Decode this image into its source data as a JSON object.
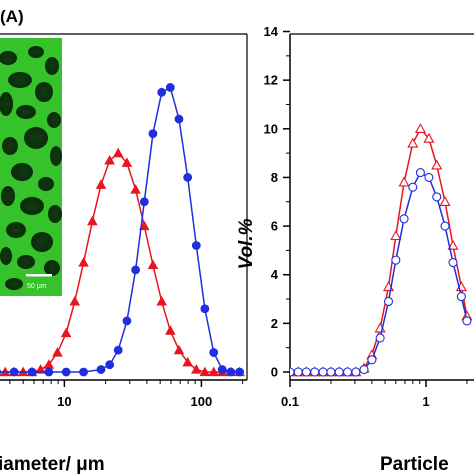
{
  "figure": {
    "panel_label": "(A)",
    "micrograph": {
      "scale_bar_label": "50 μm"
    }
  },
  "chart_data": [
    {
      "type": "line",
      "xscale": "log",
      "xlim": [
        4,
        200
      ],
      "ylim": [
        0,
        14
      ],
      "xticks": [
        10,
        100
      ],
      "xtick_labels": [
        "10",
        "100"
      ],
      "xlabel_visible": "iameter/ μm",
      "series": [
        {
          "color": "#e8141e",
          "marker": "filled-triangle",
          "points": [
            [
              3.2,
              0
            ],
            [
              3.7,
              0
            ],
            [
              4.3,
              0
            ],
            [
              5.0,
              0
            ],
            [
              5.8,
              0
            ],
            [
              6.7,
              0.1
            ],
            [
              7.7,
              0.3
            ],
            [
              8.9,
              0.8
            ],
            [
              10.3,
              1.6
            ],
            [
              11.9,
              2.9
            ],
            [
              13.8,
              4.5
            ],
            [
              16.0,
              6.2
            ],
            [
              18.5,
              7.7
            ],
            [
              21.4,
              8.7
            ],
            [
              24.7,
              9.0
            ],
            [
              28.6,
              8.6
            ],
            [
              33.1,
              7.5
            ],
            [
              38.3,
              6.0
            ],
            [
              44.3,
              4.4
            ],
            [
              51.3,
              2.9
            ],
            [
              59.3,
              1.7
            ],
            [
              68.6,
              0.9
            ],
            [
              79.4,
              0.4
            ],
            [
              91.8,
              0.1
            ],
            [
              106,
              0
            ],
            [
              123,
              0
            ],
            [
              142,
              0
            ],
            [
              164,
              0
            ],
            [
              190,
              0
            ]
          ]
        },
        {
          "color": "#1f2fe0",
          "marker": "filled-circle",
          "points": [
            [
              3.2,
              0
            ],
            [
              4.3,
              0
            ],
            [
              5.8,
              0
            ],
            [
              7.7,
              0
            ],
            [
              10.3,
              0
            ],
            [
              13.8,
              0
            ],
            [
              18.5,
              0.1
            ],
            [
              21.4,
              0.3
            ],
            [
              24.7,
              0.9
            ],
            [
              28.6,
              2.1
            ],
            [
              33.1,
              4.2
            ],
            [
              38.3,
              7.0
            ],
            [
              44.3,
              9.8
            ],
            [
              51.3,
              11.5
            ],
            [
              59.3,
              11.7
            ],
            [
              68.6,
              10.4
            ],
            [
              79.4,
              8.0
            ],
            [
              91.8,
              5.2
            ],
            [
              106,
              2.6
            ],
            [
              123,
              0.8
            ],
            [
              142,
              0.1
            ],
            [
              164,
              0
            ],
            [
              190,
              0
            ]
          ]
        }
      ]
    },
    {
      "type": "line",
      "xscale": "log",
      "xlim": [
        0.1,
        2
      ],
      "ylim": [
        0,
        14
      ],
      "xticks": [
        0.1,
        1
      ],
      "xtick_labels": [
        "0.1",
        "1"
      ],
      "yticks": [
        0,
        2,
        4,
        6,
        8,
        10,
        12,
        14
      ],
      "ytick_labels": [
        "0",
        "2",
        "4",
        "6",
        "8",
        "10",
        "12",
        "14"
      ],
      "ylabel": "Vol.%",
      "xlabel_visible": "Particle",
      "series": [
        {
          "color": "#e8141e",
          "marker": "open-triangle",
          "points": [
            [
              0.1,
              0
            ],
            [
              0.115,
              0
            ],
            [
              0.132,
              0
            ],
            [
              0.152,
              0
            ],
            [
              0.175,
              0
            ],
            [
              0.2,
              0
            ],
            [
              0.23,
              0
            ],
            [
              0.265,
              0
            ],
            [
              0.305,
              0
            ],
            [
              0.35,
              0.15
            ],
            [
              0.4,
              0.7
            ],
            [
              0.46,
              1.8
            ],
            [
              0.53,
              3.5
            ],
            [
              0.6,
              5.6
            ],
            [
              0.69,
              7.8
            ],
            [
              0.8,
              9.4
            ],
            [
              0.91,
              10.0
            ],
            [
              1.05,
              9.6
            ],
            [
              1.2,
              8.5
            ],
            [
              1.38,
              7.0
            ],
            [
              1.58,
              5.2
            ],
            [
              1.82,
              3.5
            ],
            [
              2.0,
              2.3
            ]
          ]
        },
        {
          "color": "#1f2fe0",
          "marker": "open-circle",
          "points": [
            [
              0.1,
              0
            ],
            [
              0.115,
              0
            ],
            [
              0.132,
              0
            ],
            [
              0.152,
              0
            ],
            [
              0.175,
              0
            ],
            [
              0.2,
              0
            ],
            [
              0.23,
              0
            ],
            [
              0.265,
              0
            ],
            [
              0.305,
              0
            ],
            [
              0.35,
              0.1
            ],
            [
              0.4,
              0.5
            ],
            [
              0.46,
              1.4
            ],
            [
              0.53,
              2.9
            ],
            [
              0.6,
              4.6
            ],
            [
              0.69,
              6.3
            ],
            [
              0.8,
              7.6
            ],
            [
              0.91,
              8.2
            ],
            [
              1.05,
              8.0
            ],
            [
              1.2,
              7.2
            ],
            [
              1.38,
              6.0
            ],
            [
              1.58,
              4.5
            ],
            [
              1.82,
              3.1
            ],
            [
              2.0,
              2.1
            ]
          ]
        }
      ]
    }
  ]
}
